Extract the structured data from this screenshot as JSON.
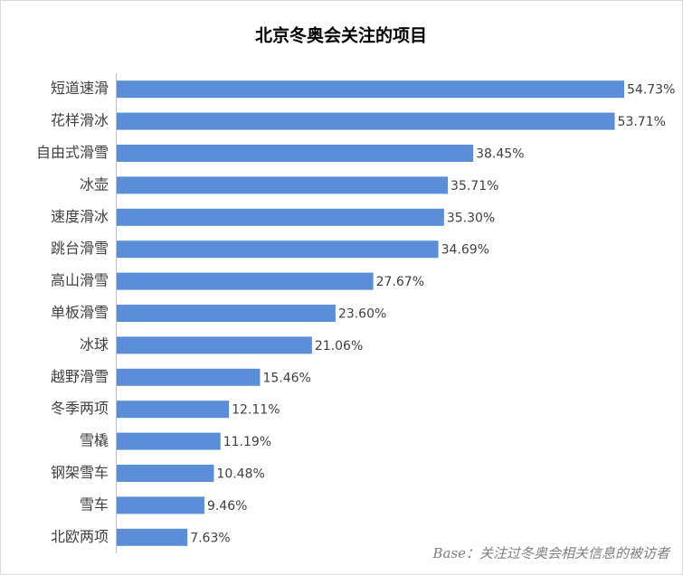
{
  "chart_data": {
    "type": "bar",
    "orientation": "horizontal",
    "title": "北京冬奥会关注的项目",
    "categories": [
      "短道速滑",
      "花样滑冰",
      "自由式滑雪",
      "冰壶",
      "速度滑冰",
      "跳台滑雪",
      "高山滑雪",
      "单板滑雪",
      "冰球",
      "越野滑雪",
      "冬季两项",
      "雪橇",
      "钢架雪车",
      "雪车",
      "北欧两项"
    ],
    "values": [
      54.73,
      53.71,
      38.45,
      35.71,
      35.3,
      34.69,
      27.67,
      23.6,
      21.06,
      15.46,
      12.11,
      11.19,
      10.48,
      9.46,
      7.63
    ],
    "value_labels": [
      "54.73%",
      "53.71%",
      "38.45%",
      "35.71%",
      "35.30%",
      "34.69%",
      "27.67%",
      "23.60%",
      "21.06%",
      "15.46%",
      "12.11%",
      "11.19%",
      "10.48%",
      "9.46%",
      "7.63%"
    ],
    "color": "#5a8ed6",
    "annotation": "Base：关注过冬奥会相关信息的被访者"
  }
}
